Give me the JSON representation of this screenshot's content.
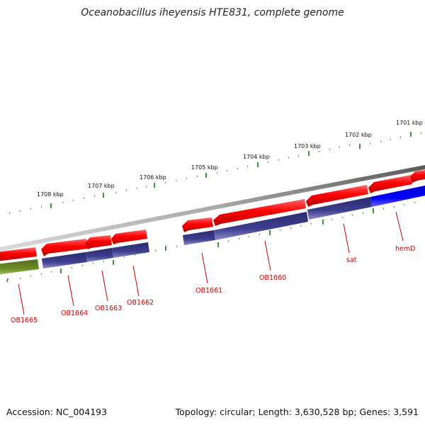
{
  "title": "Oceanobacillus iheyensis HTE831, complete genome",
  "footer": {
    "accession": "Accession: NC_004193",
    "topology": "Topology: circular; Length: 3,630,528 bp; Genes: 3,591"
  },
  "scale_labels": [
    "1708 kbp",
    "1707 kbp",
    "1706 kbp",
    "1705 kbp",
    "1704 kbp",
    "1703 kbp",
    "1702 kbp",
    "1701 kbp"
  ],
  "genes": [
    {
      "name": "OB1665",
      "color": "#6b8e23",
      "strand": "minus"
    },
    {
      "name": "OB1664",
      "color": "#3a3a8c",
      "strand": "minus"
    },
    {
      "name": "OB1663",
      "color": "#3a3a8c",
      "strand": "minus"
    },
    {
      "name": "OB1662",
      "color": "#3a3a8c",
      "strand": "minus"
    },
    {
      "name": "OB1661",
      "color": "#3a3a8c",
      "strand": "minus"
    },
    {
      "name": "OB1660",
      "color": "#3a3a8c",
      "strand": "minus"
    },
    {
      "name": "sat",
      "color": "#3a3a8c",
      "strand": "minus"
    },
    {
      "name": "hemD",
      "color": "#0000ff",
      "strand": "minus"
    }
  ],
  "colors": {
    "cds": "#ff0000",
    "backbone": "#888888",
    "ticks": "#2a8a2a",
    "label": "#cc0000"
  }
}
